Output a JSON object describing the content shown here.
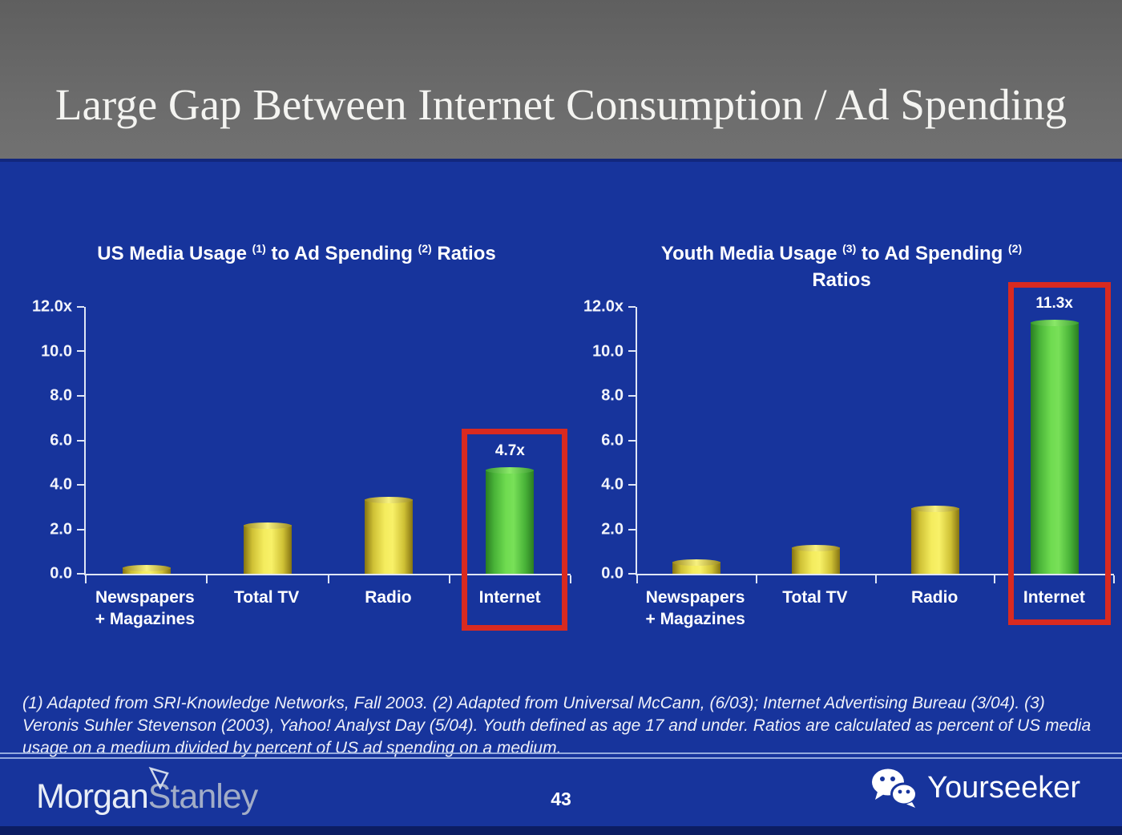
{
  "slide_title": "Large Gap Between Internet Consumption / Ad Spending",
  "footnote": "(1) Adapted from SRI-Knowledge Networks, Fall 2003.  (2) Adapted from Universal McCann, (6/03); Internet Advertising Bureau (3/04). (3) Veronis Suhler Stevenson (2003), Yahoo! Analyst Day (5/04).  Youth defined as age 17 and under.  Ratios are calculated as percent of US media usage on a medium divided by percent of US ad spending on a medium.",
  "page_number": "43",
  "brand": {
    "morgan": "Morgan",
    "stanley": "Stanley",
    "yourseeker": "Yourseeker"
  },
  "colors": {
    "background_blue": "#17349C",
    "header_gray": "#6B6B6B",
    "bar_yellow": "#F2EA55",
    "bar_green": "#5ECB44",
    "highlight_red": "#D92A20",
    "axis_white": "#DFE6F5"
  },
  "chart_data": [
    {
      "type": "bar",
      "title": "US Media Usage (1) to Ad Spending (2) Ratios",
      "title_parts": {
        "pre": "US Media Usage",
        "sup1": "(1)",
        "mid": "to Ad Spending",
        "sup2": "(2)",
        "post": "Ratios"
      },
      "categories": [
        "Newspapers + Magazines",
        "Total TV",
        "Radio",
        "Internet"
      ],
      "category_lines": [
        [
          "Newspapers",
          "+ Magazines"
        ],
        [
          "Total TV"
        ],
        [
          "Radio"
        ],
        [
          "Internet"
        ]
      ],
      "values": [
        0.3,
        2.2,
        3.35,
        4.7
      ],
      "value_labels": [
        "",
        "",
        "",
        "4.7x"
      ],
      "bar_colors": [
        "yellow",
        "yellow",
        "yellow",
        "green"
      ],
      "highlighted_category": "Internet",
      "ytick_labels": [
        "12.0x",
        "10.0",
        "8.0",
        "6.0",
        "4.0",
        "2.0",
        "0.0"
      ],
      "ylim": [
        0,
        12
      ],
      "grid": false,
      "legend": null
    },
    {
      "type": "bar",
      "title": "Youth Media Usage (3) to Ad Spending (2) Ratios",
      "title_parts": {
        "pre": "Youth Media Usage",
        "sup1": "(3)",
        "mid": "to Ad Spending",
        "sup2": "(2)",
        "post": "",
        "line2": "Ratios"
      },
      "categories": [
        "Newspapers + Magazines",
        "Total TV",
        "Radio",
        "Internet"
      ],
      "category_lines": [
        [
          "Newspapers",
          "+ Magazines"
        ],
        [
          "Total TV"
        ],
        [
          "Radio"
        ],
        [
          "Internet"
        ]
      ],
      "values": [
        0.55,
        1.2,
        2.95,
        11.3
      ],
      "value_labels": [
        "",
        "",
        "",
        "11.3x"
      ],
      "bar_colors": [
        "yellow",
        "yellow",
        "yellow",
        "green"
      ],
      "highlighted_category": "Internet",
      "ytick_labels": [
        "12.0x",
        "10.0",
        "8.0",
        "6.0",
        "4.0",
        "2.0",
        "0.0"
      ],
      "ylim": [
        0,
        12
      ],
      "grid": false,
      "legend": null
    }
  ]
}
